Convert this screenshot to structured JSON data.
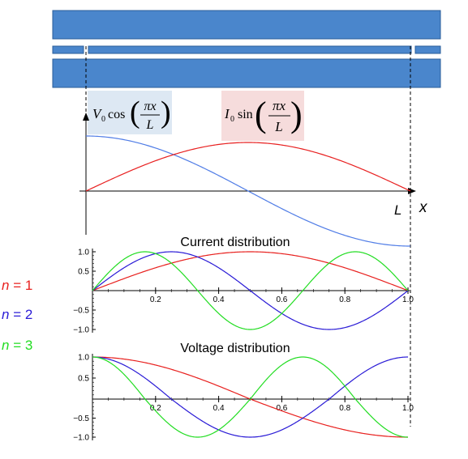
{
  "colors": {
    "plate": "#4a86cc",
    "plate_stroke": "#2a5c99",
    "voltage_box": "#dde8f3",
    "current_box": "#f6dcdc",
    "n1": "#e8201e",
    "n2": "#2a1bd6",
    "n3": "#22dd22",
    "top_cos": "#4f7ce6",
    "top_sin": "#e82020"
  },
  "top_diagram": {
    "x_label": "x",
    "L_label": "L",
    "voltage_formula": {
      "amp": "V",
      "sub": "0",
      "func": "cos",
      "num": "πx",
      "den": "L"
    },
    "current_formula": {
      "amp": "I",
      "sub": "0",
      "func": "sin",
      "num": "πx",
      "den": "L"
    }
  },
  "legend": [
    {
      "prefix": "n",
      "eq": " = ",
      "value": "1",
      "color": "#e8201e"
    },
    {
      "prefix": "n",
      "eq": " = ",
      "value": "2",
      "color": "#2a1bd6"
    },
    {
      "prefix": "n",
      "eq": " = ",
      "value": "3",
      "color": "#22dd22"
    }
  ],
  "chart_data": [
    {
      "type": "line",
      "title": "Current distribution",
      "function": "sin(n*pi*x)",
      "xlim": [
        0,
        1
      ],
      "ylim": [
        -1,
        1
      ],
      "x_ticks": [
        "0.2",
        "0.4",
        "0.6",
        "0.8",
        "1.0"
      ],
      "y_ticks": [
        "1.0",
        "0.5",
        "−0.5",
        "−1.0"
      ],
      "series": [
        {
          "name": "n = 1",
          "n": 1,
          "color": "#e8201e"
        },
        {
          "name": "n = 2",
          "n": 2,
          "color": "#2a1bd6"
        },
        {
          "name": "n = 3",
          "n": 3,
          "color": "#22dd22"
        }
      ]
    },
    {
      "type": "line",
      "title": "Voltage distribution",
      "function": "cos(n*pi*x)",
      "xlim": [
        0,
        1
      ],
      "ylim": [
        -1,
        1
      ],
      "x_ticks": [
        "0.2",
        "0.4",
        "0.6",
        "0.8",
        "1.0"
      ],
      "y_ticks": [
        "1.0",
        "0.5",
        "−0.5",
        "−1.0"
      ],
      "series": [
        {
          "name": "n = 1",
          "n": 1,
          "color": "#e8201e"
        },
        {
          "name": "n = 2",
          "n": 2,
          "color": "#2a1bd6"
        },
        {
          "name": "n = 3",
          "n": 3,
          "color": "#22dd22"
        }
      ]
    }
  ]
}
